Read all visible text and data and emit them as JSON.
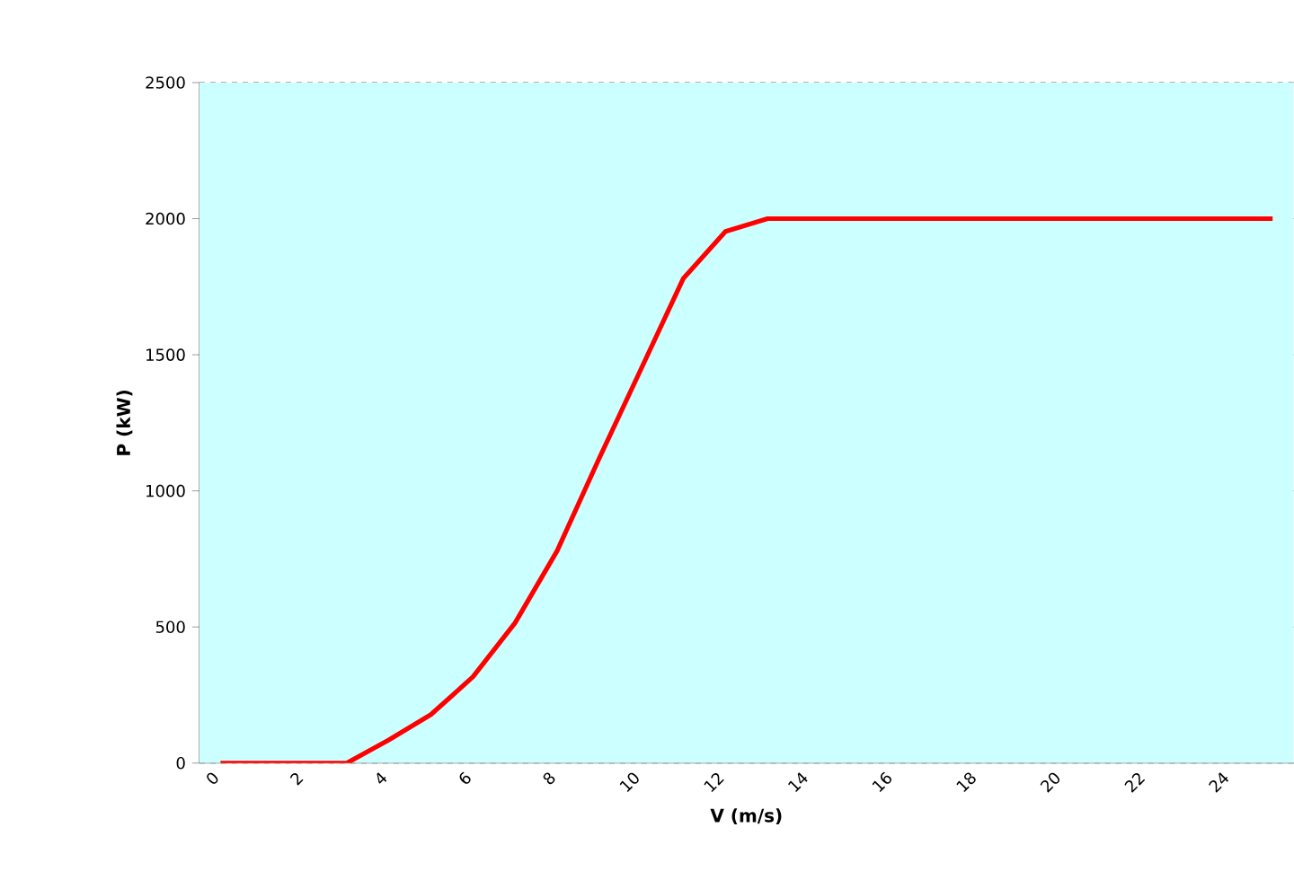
{
  "chart_data": {
    "type": "line",
    "xlabel": "V (m/s)",
    "ylabel": "P (kW)",
    "categories": [
      "0",
      null,
      "2",
      null,
      "4",
      null,
      "6",
      null,
      "8",
      null,
      "10",
      null,
      "12",
      null,
      "14",
      null,
      "16",
      null,
      "18",
      null,
      "20",
      null,
      "22",
      null,
      "24",
      null
    ],
    "series": [
      {
        "color": "#ff0000",
        "values": [
          0,
          0,
          0,
          0,
          85,
          178,
          317,
          515,
          780,
          1120,
          1450,
          1781,
          1953,
          2000,
          2000,
          2000,
          2000,
          2000,
          2000,
          2000,
          2000,
          2000,
          2000,
          2000,
          2000,
          2000
        ]
      }
    ],
    "ylim": [
      0,
      2500
    ],
    "yticks": [
      0,
      500,
      1000,
      1500,
      2000,
      2500
    ],
    "grid": "y",
    "line_style": "solid",
    "marker": "none"
  }
}
